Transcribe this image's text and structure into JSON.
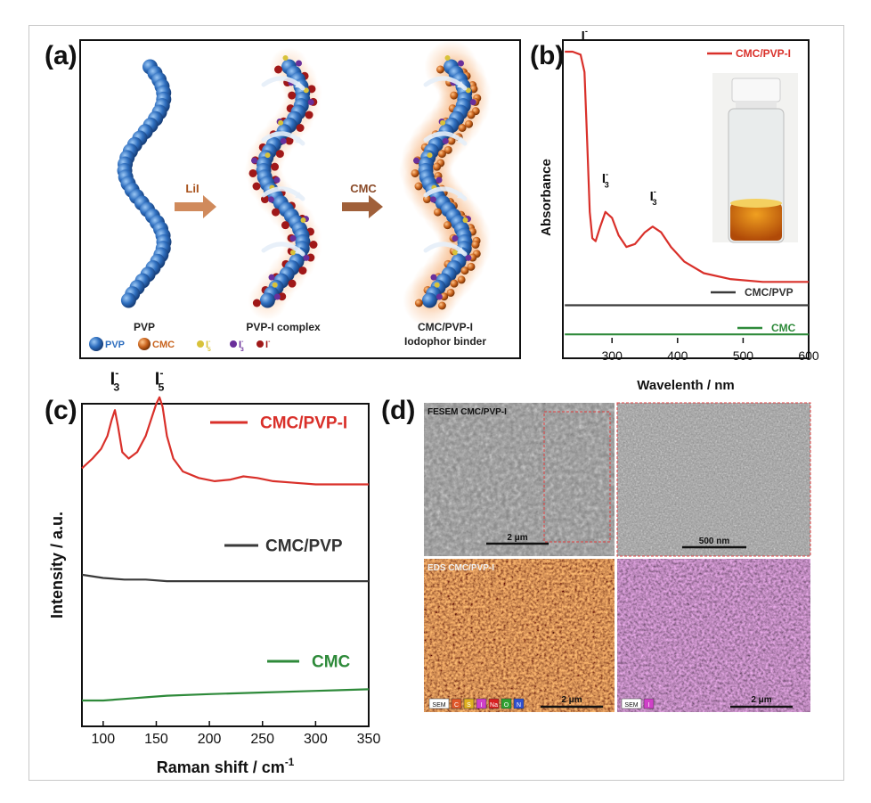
{
  "panel_labels": {
    "a": "(a)",
    "b": "(b)",
    "c": "(c)",
    "d": "(d)"
  },
  "schematic": {
    "pvp_label": "PVP",
    "pvpi_label": "PVP-I complex",
    "binder_label_1": "CMC/PVP-I",
    "binder_label_2": "Iodophor binder",
    "arrow1_label": "LiI",
    "arrow2_label": "CMC",
    "legend": [
      {
        "text": "PVP",
        "color": "#2f6fbf"
      },
      {
        "text": "CMC",
        "color": "#c8621c"
      },
      {
        "text": "I",
        "sub": "5",
        "sup": "-",
        "color": "#d8c23a"
      },
      {
        "text": "I",
        "sub": "3",
        "sup": "-",
        "color": "#6a2f9a"
      },
      {
        "text": "I",
        "sup": "-",
        "color": "#a01818"
      }
    ]
  },
  "chart_data": [
    {
      "panel": "b",
      "type": "line",
      "xlabel": "Wavelenth / nm",
      "ylabel": "Absorbance",
      "xlim": [
        225,
        600
      ],
      "xticks": [
        300,
        400,
        500,
        600
      ],
      "series": [
        {
          "name": "CMC/PVP-I",
          "color": "#d9302a",
          "x": [
            228,
            240,
            252,
            258,
            262,
            266,
            270,
            275,
            282,
            290,
            300,
            310,
            322,
            335,
            350,
            362,
            375,
            390,
            410,
            440,
            480,
            530,
            600
          ],
          "y": [
            1.0,
            1.0,
            0.99,
            0.93,
            0.7,
            0.45,
            0.36,
            0.35,
            0.4,
            0.45,
            0.43,
            0.37,
            0.33,
            0.34,
            0.38,
            0.4,
            0.38,
            0.33,
            0.28,
            0.24,
            0.22,
            0.21,
            0.21
          ]
        },
        {
          "name": "CMC/PVP",
          "color": "#3a3a3a",
          "x": [
            228,
            300,
            400,
            500,
            600
          ],
          "y": [
            0.13,
            0.13,
            0.13,
            0.13,
            0.13
          ]
        },
        {
          "name": "CMC",
          "color": "#2e8a3a",
          "x": [
            228,
            300,
            400,
            500,
            600
          ],
          "y": [
            0.03,
            0.03,
            0.03,
            0.03,
            0.03
          ]
        }
      ],
      "annotations": [
        {
          "text": "I",
          "sup": "-",
          "x": 258,
          "y": 1.04
        },
        {
          "text": "I",
          "sub": "3",
          "sup": "-",
          "x": 290,
          "y": 0.55
        },
        {
          "text": "I",
          "sub": "3",
          "sup": "-",
          "x": 363,
          "y": 0.49
        }
      ]
    },
    {
      "panel": "c",
      "type": "line",
      "xlabel": "Raman shift / cm",
      "xlabel_sup": "-1",
      "ylabel": "Intensity / a.u.",
      "xlim": [
        80,
        350
      ],
      "xticks": [
        100,
        150,
        200,
        250,
        300,
        350
      ],
      "series": [
        {
          "name": "CMC/PVP-I",
          "color": "#d9302a",
          "x": [
            80,
            90,
            98,
            104,
            108,
            111,
            114,
            118,
            124,
            132,
            140,
            146,
            150,
            153,
            156,
            160,
            166,
            175,
            190,
            205,
            220,
            232,
            245,
            260,
            280,
            300,
            320,
            350
          ],
          "y": [
            0.8,
            0.83,
            0.86,
            0.9,
            0.95,
            0.98,
            0.93,
            0.85,
            0.83,
            0.85,
            0.9,
            0.96,
            1.0,
            1.02,
            0.99,
            0.9,
            0.83,
            0.79,
            0.77,
            0.76,
            0.765,
            0.775,
            0.77,
            0.76,
            0.755,
            0.75,
            0.75,
            0.75
          ]
        },
        {
          "name": "CMC/PVP",
          "color": "#3a3a3a",
          "x": [
            80,
            100,
            120,
            140,
            160,
            200,
            250,
            300,
            350
          ],
          "y": [
            0.47,
            0.46,
            0.455,
            0.455,
            0.45,
            0.45,
            0.45,
            0.45,
            0.45
          ]
        },
        {
          "name": "CMC",
          "color": "#2e8a3a",
          "x": [
            80,
            100,
            120,
            140,
            160,
            200,
            250,
            300,
            350
          ],
          "y": [
            0.08,
            0.08,
            0.085,
            0.09,
            0.095,
            0.1,
            0.105,
            0.11,
            0.115
          ]
        }
      ],
      "annotations": [
        {
          "text": "I",
          "sub": "3",
          "sup": "-",
          "x": 111,
          "y": 1.06
        },
        {
          "text": "I",
          "sub": "5",
          "sup": "-",
          "x": 153,
          "y": 1.06
        }
      ]
    }
  ],
  "sem": {
    "fesem_label": "FESEM CMC/PVP-I",
    "eds_label": "EDS CMC/PVP-I",
    "scale_fesem": "2 μm",
    "scale_zoom": "500 nm",
    "scale_eds": "2 μm",
    "scale_eds_i": "2 μm",
    "eds_legend": [
      "SEM",
      "C",
      "S",
      "I",
      "Na",
      "O",
      "N"
    ],
    "eds_legend_colors": [
      "#ffffff",
      "#e0582a",
      "#e0b020",
      "#d040c8",
      "#d82020",
      "#30a030",
      "#3050d0"
    ],
    "eds_i_legend": [
      "SEM",
      "I"
    ],
    "eds_i_legend_colors": [
      "#ffffff",
      "#d040c8"
    ]
  }
}
